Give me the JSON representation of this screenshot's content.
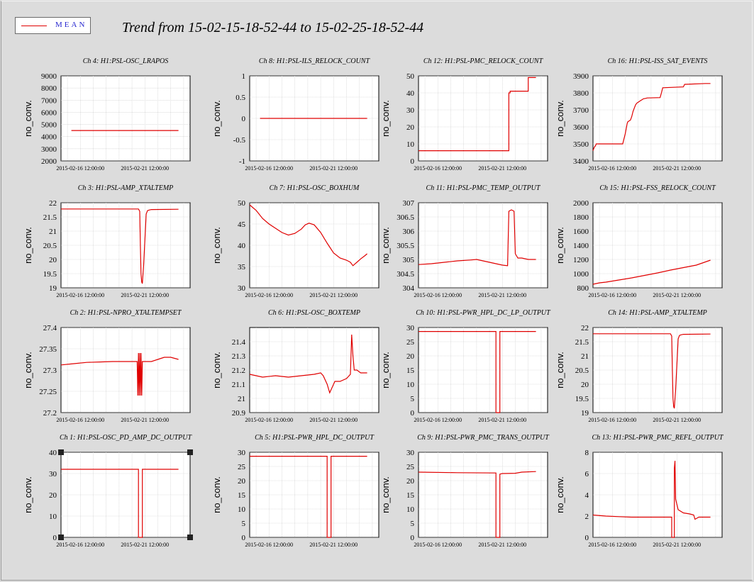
{
  "title": "Trend from 15-02-15-18-52-44 to 15-02-25-18-52-44",
  "legend": {
    "label": "MEAN",
    "color": "#e00000"
  },
  "line_color": "#e00000",
  "chart_data": [
    {
      "type": "line",
      "title": "Ch 4: H1:PSL-OSC_LRAPOS",
      "ylabel": "no_conv.",
      "xticks": [
        "2015-02-16 12:00:00",
        "2015-02-21 12:00:00"
      ],
      "ylim": [
        2000,
        9000
      ],
      "yticks": [
        2000,
        3000,
        4000,
        5000,
        6000,
        7000,
        8000,
        9000
      ],
      "x": [
        0.8,
        9.1
      ],
      "y": [
        4500,
        4500
      ]
    },
    {
      "type": "line",
      "title": "Ch 8: H1:PSL-ILS_RELOCK_COUNT",
      "ylabel": "no_conv.",
      "xticks": [
        "2015-02-16 12:00:00",
        "2015-02-21 12:00:00"
      ],
      "ylim": [
        -1,
        1
      ],
      "yticks": [
        -1,
        -0.5,
        0,
        0.5,
        1
      ],
      "x": [
        0.8,
        9.1
      ],
      "y": [
        0,
        0
      ]
    },
    {
      "type": "line",
      "title": "Ch 12: H1:PSL-PMC_RELOCK_COUNT",
      "ylabel": "no_conv.",
      "xticks": [
        "2015-02-16 12:00:00",
        "2015-02-21 12:00:00"
      ],
      "ylim": [
        0,
        50
      ],
      "yticks": [
        0,
        10,
        20,
        30,
        40,
        50
      ],
      "x": [
        0,
        7.0,
        7.0,
        7.1,
        7.1,
        8.5,
        8.5,
        9.1
      ],
      "y": [
        6,
        6,
        40,
        40,
        41,
        41,
        49,
        49
      ]
    },
    {
      "type": "line",
      "title": "Ch 16: H1:PSL-ISS_SAT_EVENTS",
      "ylabel": "no_conv.",
      "xticks": [
        "2015-02-16 12:00:00",
        "2015-02-21 12:00:00"
      ],
      "ylim": [
        3400,
        3900
      ],
      "yticks": [
        3400,
        3500,
        3600,
        3700,
        3800,
        3900
      ],
      "x": [
        0,
        0.1,
        0.2,
        0.25,
        0.3,
        2.3,
        2.4,
        2.5,
        2.6,
        2.65,
        2.7,
        2.9,
        3.0,
        3.1,
        3.2,
        3.3,
        3.4,
        3.6,
        3.7,
        3.8,
        3.9,
        4.1,
        4.2,
        5.2,
        5.3,
        5.4,
        7.0,
        7.1,
        8.7,
        9.1
      ],
      "y": [
        3460,
        3480,
        3490,
        3500,
        3500,
        3500,
        3530,
        3560,
        3600,
        3620,
        3630,
        3640,
        3660,
        3690,
        3710,
        3730,
        3740,
        3750,
        3755,
        3760,
        3765,
        3768,
        3770,
        3772,
        3800,
        3830,
        3835,
        3850,
        3855,
        3855
      ]
    },
    {
      "type": "line",
      "title": "Ch 3: H1:PSL-AMP_XTALTEMP",
      "ylabel": "no_conv.",
      "xticks": [
        "2015-02-16 12:00:00",
        "2015-02-21 12:00:00"
      ],
      "ylim": [
        19,
        22
      ],
      "yticks": [
        19,
        19.5,
        20,
        20.5,
        21,
        21.5,
        22
      ],
      "x": [
        0,
        6.0,
        6.1,
        6.15,
        6.2,
        6.25,
        6.3,
        6.4,
        6.6,
        6.7,
        6.8,
        7.0,
        9.1
      ],
      "y": [
        21.78,
        21.78,
        21.7,
        20.5,
        19.5,
        19.2,
        19.15,
        19.8,
        21.6,
        21.72,
        21.74,
        21.76,
        21.77
      ]
    },
    {
      "type": "line",
      "title": "Ch 7: H1:PSL-OSC_BOXHUM",
      "ylabel": "no_conv.",
      "xticks": [
        "2015-02-16 12:00:00",
        "2015-02-21 12:00:00"
      ],
      "ylim": [
        30,
        50
      ],
      "yticks": [
        30,
        35,
        40,
        45,
        50
      ],
      "x": [
        0,
        0.5,
        1.0,
        1.5,
        2.0,
        2.5,
        3.0,
        3.5,
        4.0,
        4.3,
        4.6,
        5.0,
        5.5,
        6.0,
        6.5,
        7.0,
        7.5,
        7.8,
        8.0,
        8.3,
        8.6,
        8.9,
        9.1
      ],
      "y": [
        49.5,
        48.2,
        46.3,
        45.0,
        44.0,
        43.0,
        42.4,
        42.8,
        43.8,
        44.8,
        45.2,
        44.8,
        43.0,
        40.5,
        38.2,
        37.0,
        36.5,
        36.0,
        35.2,
        36.0,
        36.8,
        37.5,
        38.0
      ]
    },
    {
      "type": "line",
      "title": "Ch 11: H1:PSL-PMC_TEMP_OUTPUT",
      "ylabel": "no_conv.",
      "xticks": [
        "2015-02-16 12:00:00",
        "2015-02-21 12:00:00"
      ],
      "ylim": [
        304,
        307
      ],
      "yticks": [
        304,
        304.5,
        305,
        305.5,
        306,
        306.5,
        307
      ],
      "x": [
        0,
        1.0,
        2.0,
        3.0,
        4.0,
        4.5,
        5.0,
        5.5,
        6.0,
        6.5,
        6.9,
        7.0,
        7.2,
        7.4,
        7.5,
        7.7,
        8.0,
        8.5,
        9.1
      ],
      "y": [
        304.82,
        304.85,
        304.9,
        304.95,
        304.98,
        305.0,
        304.95,
        304.9,
        304.85,
        304.8,
        304.78,
        306.7,
        306.75,
        306.7,
        305.2,
        305.05,
        305.05,
        305.0,
        305.0
      ]
    },
    {
      "type": "line",
      "title": "Ch 15: H1:PSL-FSS_RELOCK_COUNT",
      "ylabel": "no_conv.",
      "xticks": [
        "2015-02-16 12:00:00",
        "2015-02-21 12:00:00"
      ],
      "ylim": [
        800,
        2000
      ],
      "yticks": [
        800,
        1000,
        1200,
        1400,
        1600,
        1800,
        2000
      ],
      "x": [
        0,
        0.5,
        1.0,
        2.0,
        3.0,
        4.0,
        5.0,
        6.0,
        7.0,
        8.0,
        9.1
      ],
      "y": [
        850,
        870,
        880,
        910,
        940,
        975,
        1010,
        1050,
        1085,
        1120,
        1190
      ]
    },
    {
      "type": "line",
      "title": "Ch 2: H1:PSL-NPRO_XTALTEMPSET",
      "ylabel": "no_conv.",
      "xticks": [
        "2015-02-16 12:00:00",
        "2015-02-21 12:00:00"
      ],
      "ylim": [
        27.2,
        27.4
      ],
      "yticks": [
        27.2,
        27.25,
        27.3,
        27.35,
        27.4
      ],
      "x": [
        0,
        1.0,
        2.0,
        3.0,
        4.0,
        5.0,
        5.9,
        5.95,
        6.0,
        6.05,
        6.1,
        6.15,
        6.2,
        6.25,
        6.3,
        7.0,
        7.5,
        8.0,
        8.5,
        9.1
      ],
      "y": [
        27.312,
        27.315,
        27.318,
        27.319,
        27.32,
        27.32,
        27.32,
        27.24,
        27.34,
        27.24,
        27.34,
        27.24,
        27.34,
        27.24,
        27.32,
        27.32,
        27.325,
        27.33,
        27.33,
        27.325
      ]
    },
    {
      "type": "line",
      "title": "Ch 6: H1:PSL-OSC_BOXTEMP",
      "ylabel": "no_conv.",
      "xticks": [
        "2015-02-16 12:00:00",
        "2015-02-21 12:00:00"
      ],
      "ylim": [
        20.9,
        21.5
      ],
      "yticks": [
        20.9,
        21,
        21.1,
        21.2,
        21.3,
        21.4
      ],
      "x": [
        0,
        1.0,
        2.0,
        3.0,
        4.0,
        5.0,
        5.5,
        5.7,
        6.0,
        6.2,
        6.4,
        6.6,
        7.0,
        7.5,
        7.8,
        7.9,
        8.0,
        8.1,
        8.3,
        8.6,
        9.1
      ],
      "y": [
        21.17,
        21.15,
        21.16,
        21.15,
        21.16,
        21.17,
        21.18,
        21.16,
        21.1,
        21.04,
        21.08,
        21.12,
        21.12,
        21.14,
        21.17,
        21.45,
        21.3,
        21.2,
        21.2,
        21.18,
        21.18
      ]
    },
    {
      "type": "line",
      "title": "Ch 10: H1:PSL-PWR_HPL_DC_LP_OUTPUT",
      "ylabel": "no_conv.",
      "xticks": [
        "2015-02-16 12:00:00",
        "2015-02-21 12:00:00"
      ],
      "ylim": [
        0,
        30
      ],
      "yticks": [
        0,
        5,
        10,
        15,
        20,
        25,
        30
      ],
      "x": [
        0,
        6.0,
        6.0,
        6.3,
        6.3,
        9.1
      ],
      "y": [
        28.6,
        28.6,
        0,
        0,
        28.6,
        28.6
      ]
    },
    {
      "type": "line",
      "title": "Ch 14: H1:PSL-AMP_XTALTEMP",
      "ylabel": "no_conv.",
      "xticks": [
        "2015-02-16 12:00:00",
        "2015-02-21 12:00:00"
      ],
      "ylim": [
        19,
        22
      ],
      "yticks": [
        19,
        19.5,
        20,
        20.5,
        21,
        21.5,
        22
      ],
      "x": [
        0,
        6.0,
        6.1,
        6.15,
        6.2,
        6.25,
        6.3,
        6.4,
        6.6,
        6.7,
        6.8,
        7.0,
        9.1
      ],
      "y": [
        21.78,
        21.78,
        21.7,
        20.5,
        19.5,
        19.2,
        19.15,
        19.8,
        21.6,
        21.72,
        21.74,
        21.76,
        21.77
      ]
    },
    {
      "type": "line",
      "title": "Ch 1: H1:PSL-OSC_PD_AMP_DC_OUTPUT",
      "ylabel": "no_conv.",
      "xticks": [
        "2015-02-16 12:00:00",
        "2015-02-21 12:00:00"
      ],
      "ylim": [
        0,
        40
      ],
      "yticks": [
        0,
        10,
        20,
        30,
        40
      ],
      "x": [
        0,
        6.0,
        6.0,
        6.3,
        6.3,
        9.1
      ],
      "y": [
        32,
        32,
        0,
        0,
        32,
        32
      ]
    },
    {
      "type": "line",
      "title": "Ch 5: H1:PSL-PWR_HPL_DC_OUTPUT",
      "ylabel": "no_conv.",
      "xticks": [
        "2015-02-16 12:00:00",
        "2015-02-21 12:00:00"
      ],
      "ylim": [
        0,
        30
      ],
      "yticks": [
        0,
        5,
        10,
        15,
        20,
        25,
        30
      ],
      "x": [
        0,
        6.0,
        6.0,
        6.3,
        6.3,
        9.1
      ],
      "y": [
        28.6,
        28.6,
        0,
        0,
        28.6,
        28.6
      ]
    },
    {
      "type": "line",
      "title": "Ch 9: H1:PSL-PWR_PMC_TRANS_OUTPUT",
      "ylabel": "no_conv.",
      "xticks": [
        "2015-02-16 12:00:00",
        "2015-02-21 12:00:00"
      ],
      "ylim": [
        0,
        30
      ],
      "yticks": [
        0,
        5,
        10,
        15,
        20,
        25,
        30
      ],
      "x": [
        0,
        3.0,
        6.0,
        6.0,
        6.3,
        6.3,
        6.5,
        7.5,
        8.0,
        9.1
      ],
      "y": [
        23,
        22.8,
        22.7,
        0,
        0,
        22.3,
        22.5,
        22.6,
        23,
        23.2
      ]
    },
    {
      "type": "line",
      "title": "Ch 13: H1:PSL-PWR_PMC_REFL_OUTPUT",
      "ylabel": "no_conv.",
      "xticks": [
        "2015-02-16 12:00:00",
        "2015-02-21 12:00:00"
      ],
      "ylim": [
        0,
        8
      ],
      "yticks": [
        0,
        2,
        4,
        6,
        8
      ],
      "x": [
        0,
        1.0,
        2.0,
        3.0,
        4.0,
        5.0,
        6.0,
        6.1,
        6.1,
        6.3,
        6.3,
        6.35,
        6.4,
        6.6,
        7.0,
        7.5,
        7.8,
        7.9,
        8.2,
        9.1
      ],
      "y": [
        2.1,
        2.0,
        1.95,
        1.9,
        1.9,
        1.9,
        1.9,
        1.9,
        0,
        0,
        6.5,
        7.2,
        3.6,
        2.6,
        2.3,
        2.2,
        2.1,
        1.7,
        1.9,
        1.9
      ]
    }
  ]
}
